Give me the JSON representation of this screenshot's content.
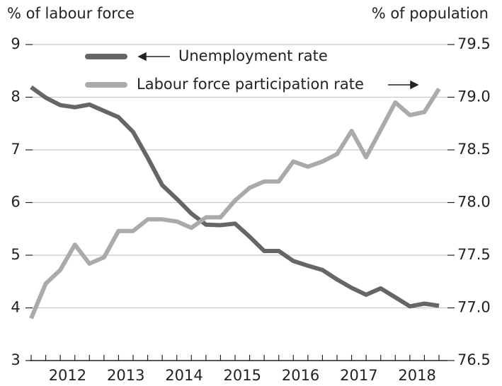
{
  "chart_data": {
    "type": "line",
    "y_label": "% of labour force",
    "y2_label": "% of population",
    "categories": [
      null,
      null,
      "2012",
      null,
      null,
      null,
      "2013",
      null,
      null,
      null,
      "2014",
      null,
      null,
      null,
      "2015",
      null,
      null,
      null,
      "2016",
      null,
      null,
      null,
      "2017",
      null,
      null,
      null,
      "2018",
      null,
      null
    ],
    "series": [
      {
        "name": "Unemployment rate",
        "color": "#666666",
        "axis": "y",
        "values": [
          8.19,
          7.99,
          7.85,
          7.81,
          7.86,
          7.74,
          7.62,
          7.34,
          6.85,
          6.33,
          6.07,
          5.79,
          5.58,
          5.57,
          5.6,
          5.35,
          5.08,
          5.08,
          4.89,
          4.8,
          4.72,
          4.54,
          4.38,
          4.25,
          4.37,
          4.2,
          4.03,
          4.08,
          4.04
        ]
      },
      {
        "name": "Labour force participation rate",
        "color": "#aaaaaa",
        "axis": "y2",
        "values": [
          76.9,
          77.23,
          77.36,
          77.6,
          77.42,
          77.48,
          77.73,
          77.73,
          77.84,
          77.84,
          77.82,
          77.76,
          77.86,
          77.86,
          78.02,
          78.14,
          78.2,
          78.2,
          78.39,
          78.34,
          78.39,
          78.46,
          78.68,
          78.43,
          78.69,
          78.95,
          78.83,
          78.86,
          79.08
        ]
      }
    ],
    "ylim": [
      3,
      9
    ],
    "yticks": [
      3,
      4,
      5,
      6,
      7,
      8,
      9
    ],
    "y2lim": [
      76.5,
      79.5
    ],
    "y2ticks": [
      76.5,
      {
        "value": 77,
        "label": "77.0"
      },
      77.5,
      {
        "value": 78,
        "label": "78.0"
      },
      78.5,
      {
        "value": 79,
        "label": "79.0"
      },
      79.5
    ],
    "grid": true
  }
}
